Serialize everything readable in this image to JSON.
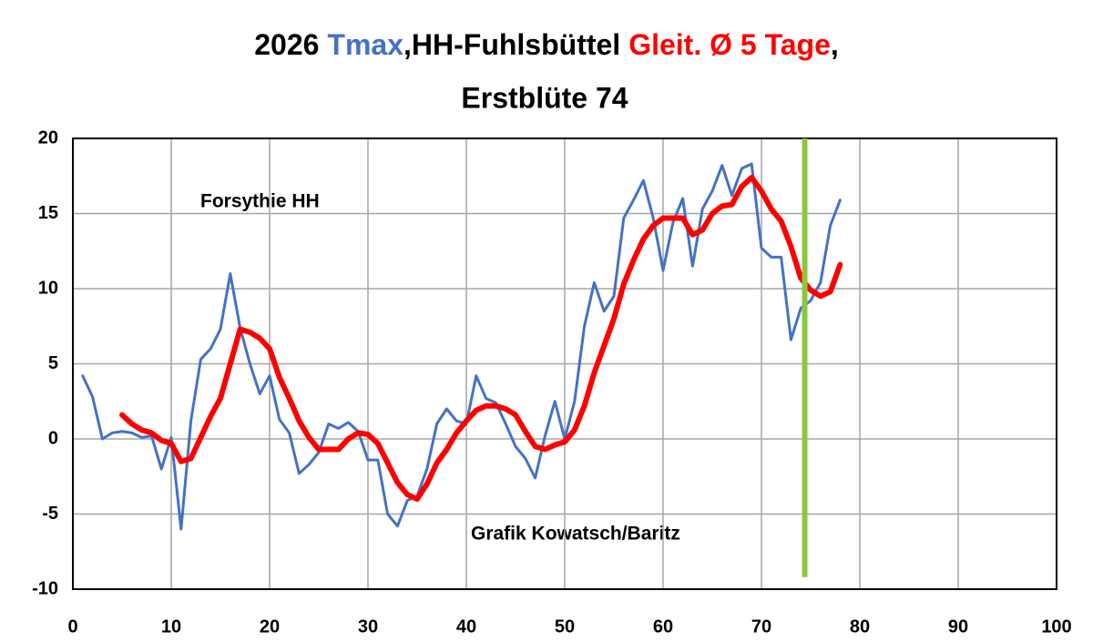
{
  "chart_data": {
    "type": "line",
    "title_segments": [
      "2026",
      ",HH-Fuhlsbüttel",
      ","
    ],
    "subtitle": "Erstblüte 74",
    "annotations": [
      "Forsythie HH",
      "Grafik Kowatsch/Baritz"
    ],
    "x": [
      1,
      2,
      3,
      4,
      5,
      6,
      7,
      8,
      9,
      10,
      11,
      12,
      13,
      14,
      15,
      16,
      17,
      18,
      19,
      20,
      21,
      22,
      23,
      24,
      25,
      26,
      27,
      28,
      29,
      30,
      31,
      32,
      33,
      34,
      35,
      36,
      37,
      38,
      39,
      40,
      41,
      42,
      43,
      44,
      45,
      46,
      47,
      48,
      49,
      50,
      51,
      52,
      53,
      54,
      55,
      56,
      57,
      58,
      59,
      60,
      61,
      62,
      63,
      64,
      65,
      66,
      67,
      68,
      69,
      70,
      71,
      72,
      73,
      74,
      75,
      76,
      77,
      78
    ],
    "series": [
      {
        "name": "Tmax",
        "color": "#4472c4",
        "values": [
          4.2,
          2.8,
          0.0,
          0.4,
          0.5,
          0.4,
          0.1,
          0.2,
          -2.0,
          0.1,
          -6.0,
          1.2,
          5.3,
          6.0,
          7.3,
          11.0,
          7.4,
          5.0,
          3.0,
          4.2,
          1.3,
          0.4,
          -2.3,
          -1.7,
          -0.9,
          1.0,
          0.7,
          1.1,
          0.5,
          -1.4,
          -1.4,
          -5.0,
          -5.8,
          -4.1,
          -3.8,
          -2.0,
          1.0,
          2.0,
          1.2,
          1.0,
          4.2,
          2.7,
          2.4,
          1.0,
          -0.5,
          -1.3,
          -2.6,
          0.2,
          2.5,
          0.0,
          2.5,
          7.5,
          10.4,
          8.5,
          9.5,
          14.7,
          15.9,
          17.2,
          14.7,
          11.2,
          14.4,
          16.0,
          11.5,
          15.3,
          16.5,
          18.2,
          16.2,
          18.0,
          18.3,
          12.7,
          12.1,
          12.1,
          6.6,
          8.7,
          9.2,
          10.4,
          14.2,
          15.9
        ]
      },
      {
        "name": "Gleit. Ø 5 Tage",
        "color": "#ff0000",
        "values": [
          null,
          null,
          null,
          null,
          1.6,
          1.0,
          0.6,
          0.4,
          -0.1,
          -0.3,
          -1.5,
          -1.3,
          0.1,
          1.5,
          2.7,
          5.0,
          7.3,
          7.1,
          6.7,
          6.0,
          4.1,
          2.7,
          1.2,
          0.1,
          -0.7,
          -0.7,
          -0.7,
          0.0,
          0.4,
          0.3,
          -0.3,
          -1.6,
          -2.9,
          -3.7,
          -4.0,
          -3.0,
          -1.6,
          -0.7,
          0.4,
          1.2,
          1.9,
          2.2,
          2.2,
          2.0,
          1.6,
          0.5,
          -0.5,
          -0.7,
          -0.4,
          -0.2,
          0.6,
          2.2,
          4.4,
          6.2,
          8.0,
          10.3,
          11.9,
          13.3,
          14.2,
          14.7,
          14.7,
          14.7,
          13.6,
          13.9,
          15.0,
          15.5,
          15.6,
          16.8,
          17.4,
          16.5,
          15.3,
          14.5,
          12.8,
          10.7,
          9.9,
          9.5,
          9.8,
          11.6
        ]
      }
    ],
    "vline": {
      "x": 74.4,
      "y": [
        20,
        -9.2
      ],
      "color": "#8cc63f"
    },
    "xlim": [
      0,
      100
    ],
    "xticks": [
      0,
      10,
      20,
      30,
      40,
      50,
      60,
      70,
      80,
      90,
      100
    ],
    "ylim": [
      -10,
      20
    ],
    "yticks": [
      -10,
      -5,
      0,
      5,
      10,
      15,
      20
    ],
    "grid": true
  }
}
